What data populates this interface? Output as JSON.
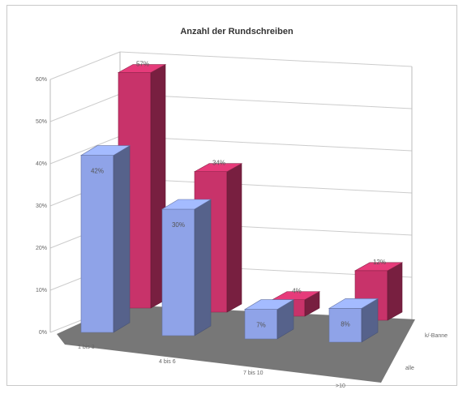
{
  "chart_data": {
    "type": "bar",
    "title": "Anzahl der Rundschreiben",
    "categories": [
      "1 bis 3",
      "4 bis 6",
      "7 bis 10",
      ">10"
    ],
    "series": [
      {
        "name": "k/-Banne",
        "values": [
          57,
          34,
          4,
          12
        ],
        "labels": [
          "57%",
          "34%",
          "4%",
          "12%"
        ],
        "color": "#c8336a"
      },
      {
        "name": "alle",
        "values": [
          42,
          30,
          7,
          8
        ],
        "labels": [
          "42%",
          "30%",
          "7%",
          "8%"
        ],
        "color": "#8fa3e8"
      }
    ],
    "y_ticks": [
      "0%",
      "10%",
      "20%",
      "30%",
      "40%",
      "50%",
      "60%"
    ],
    "ylim": [
      0,
      60
    ],
    "floor_color": "#777777",
    "grid": true,
    "legend": "none"
  }
}
